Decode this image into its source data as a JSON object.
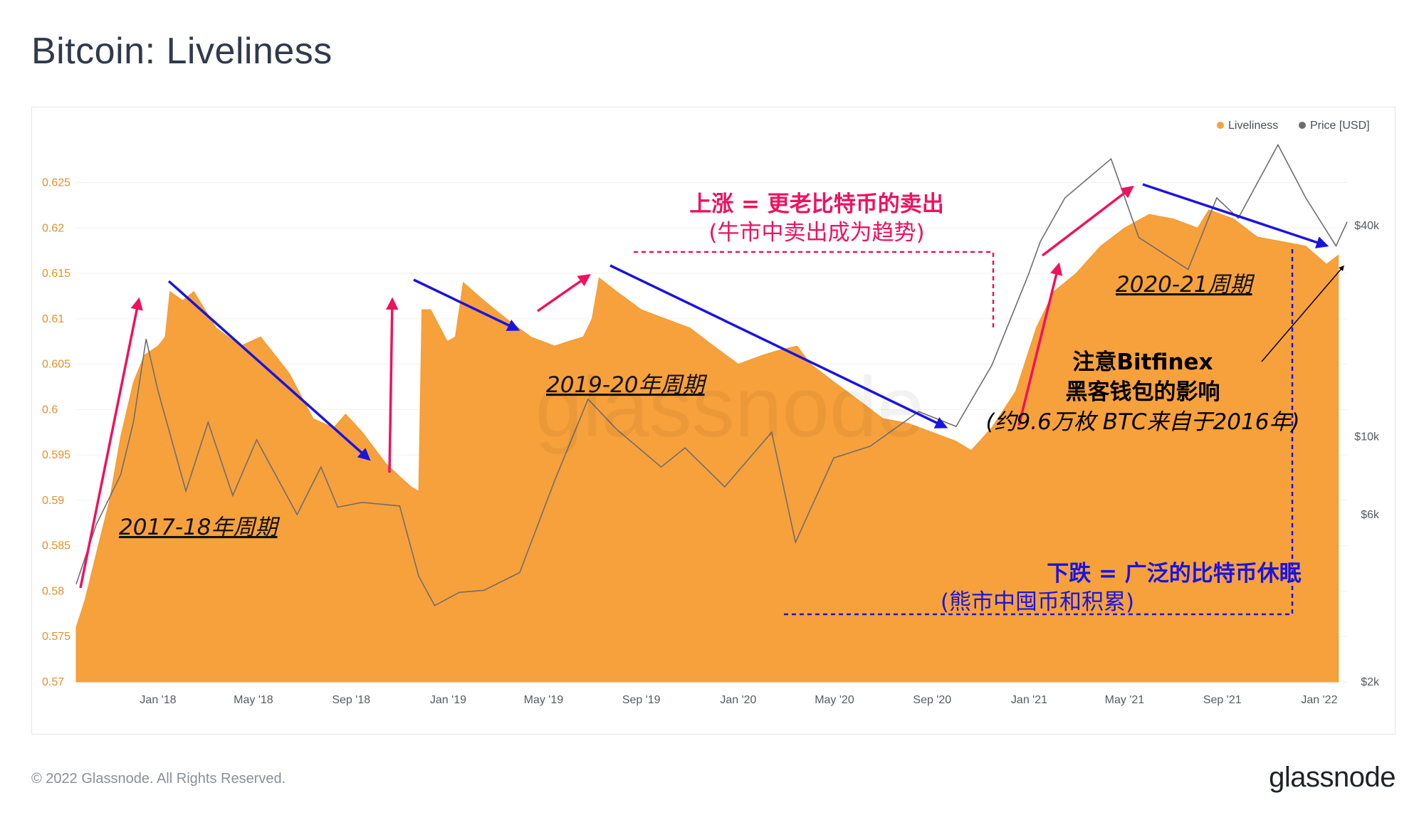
{
  "header": {
    "title": "Bitcoin: Liveliness"
  },
  "footer": {
    "copyright": "© 2022 Glassnode. All Rights Reserved.",
    "logo_text": "glassnode"
  },
  "watermark": "glassnode",
  "colors": {
    "liveliness": "#f7a13c",
    "price": "#6e6e6e",
    "up_arrow": "#f0115f",
    "down_arrow": "#1a14e0",
    "dashed_up": "#f0115f",
    "dashed_down": "#1a14e0"
  },
  "chart_data": {
    "type": "area",
    "title": "Bitcoin: Liveliness",
    "legend": {
      "position": "top-right",
      "items": [
        "Liveliness",
        "Price [USD]"
      ]
    },
    "x_ticks": [
      "Jan '18",
      "May '18",
      "Sep '18",
      "Jan '19",
      "May '19",
      "Sep '19",
      "Jan '20",
      "May '20",
      "Sep '20",
      "Jan '21",
      "May '21",
      "Sep '21",
      "Jan '22"
    ],
    "y_left": {
      "label": "Liveliness",
      "ylim": [
        0.57,
        0.627
      ],
      "ticks": [
        "0.57",
        "0.575",
        "0.58",
        "0.585",
        "0.59",
        "0.595",
        "0.6",
        "0.605",
        "0.61",
        "0.615",
        "0.62",
        "0.625"
      ]
    },
    "y_right": {
      "label": "Price [USD]",
      "scale": "log",
      "ticks": [
        "$2k",
        "$6k",
        "$10k",
        "$40k"
      ],
      "tick_values": [
        2000,
        6000,
        10000,
        40000
      ]
    },
    "series": [
      {
        "name": "Liveliness",
        "type": "area",
        "points": [
          [
            "2017-09-20",
            0.576
          ],
          [
            "2017-10-01",
            0.579
          ],
          [
            "2017-10-15",
            0.584
          ],
          [
            "2017-11-01",
            0.59
          ],
          [
            "2017-11-15",
            0.597
          ],
          [
            "2017-12-01",
            0.603
          ],
          [
            "2017-12-15",
            0.606
          ],
          [
            "2018-01-01",
            0.607
          ],
          [
            "2018-01-10",
            0.608
          ],
          [
            "2018-01-16",
            0.613
          ],
          [
            "2018-02-01",
            0.612
          ],
          [
            "2018-02-15",
            0.613
          ],
          [
            "2018-03-15",
            0.609
          ],
          [
            "2018-04-15",
            0.607
          ],
          [
            "2018-05-10",
            0.608
          ],
          [
            "2018-06-15",
            0.604
          ],
          [
            "2018-07-15",
            0.599
          ],
          [
            "2018-08-10",
            0.598
          ],
          [
            "2018-08-25",
            0.5995
          ],
          [
            "2018-09-15",
            0.5975
          ],
          [
            "2018-10-15",
            0.594
          ],
          [
            "2018-11-15",
            0.5915
          ],
          [
            "2018-11-25",
            0.591
          ],
          [
            "2018-11-29",
            0.611
          ],
          [
            "2018-12-10",
            0.611
          ],
          [
            "2018-12-31",
            0.6075
          ],
          [
            "2019-01-10",
            0.608
          ],
          [
            "2019-01-20",
            0.614
          ],
          [
            "2019-02-15",
            0.612
          ],
          [
            "2019-03-15",
            0.61
          ],
          [
            "2019-04-15",
            0.608
          ],
          [
            "2019-05-15",
            0.607
          ],
          [
            "2019-06-01",
            0.6075
          ],
          [
            "2019-06-20",
            0.608
          ],
          [
            "2019-07-01",
            0.61
          ],
          [
            "2019-07-10",
            0.6145
          ],
          [
            "2019-08-01",
            0.613
          ],
          [
            "2019-09-01",
            0.611
          ],
          [
            "2019-10-01",
            0.61
          ],
          [
            "2019-11-01",
            0.609
          ],
          [
            "2019-12-01",
            0.607
          ],
          [
            "2020-01-01",
            0.605
          ],
          [
            "2020-02-01",
            0.606
          ],
          [
            "2020-02-20",
            0.6065
          ],
          [
            "2020-03-15",
            0.607
          ],
          [
            "2020-04-01",
            0.605
          ],
          [
            "2020-05-01",
            0.603
          ],
          [
            "2020-06-01",
            0.601
          ],
          [
            "2020-07-01",
            0.599
          ],
          [
            "2020-08-01",
            0.5985
          ],
          [
            "2020-09-01",
            0.5975
          ],
          [
            "2020-10-01",
            0.5965
          ],
          [
            "2020-10-20",
            0.5955
          ],
          [
            "2020-11-15",
            0.598
          ],
          [
            "2020-12-15",
            0.602
          ],
          [
            "2021-01-10",
            0.609
          ],
          [
            "2021-02-01",
            0.613
          ],
          [
            "2021-03-01",
            0.615
          ],
          [
            "2021-04-01",
            0.618
          ],
          [
            "2021-05-01",
            0.62
          ],
          [
            "2021-06-01",
            0.6215
          ],
          [
            "2021-07-01",
            0.621
          ],
          [
            "2021-08-01",
            0.62
          ],
          [
            "2021-08-15",
            0.622
          ],
          [
            "2021-09-15",
            0.621
          ],
          [
            "2021-10-15",
            0.619
          ],
          [
            "2021-11-15",
            0.6185
          ],
          [
            "2021-12-15",
            0.618
          ],
          [
            "2022-01-10",
            0.616
          ],
          [
            "2022-01-25",
            0.617
          ]
        ]
      },
      {
        "name": "Price [USD]",
        "type": "line",
        "points": [
          [
            "2017-09-20",
            3800
          ],
          [
            "2017-10-15",
            5600
          ],
          [
            "2017-11-15",
            7800
          ],
          [
            "2017-12-01",
            11000
          ],
          [
            "2017-12-17",
            19000
          ],
          [
            "2018-01-01",
            13500
          ],
          [
            "2018-02-05",
            7000
          ],
          [
            "2018-03-05",
            11000
          ],
          [
            "2018-04-05",
            6800
          ],
          [
            "2018-05-05",
            9800
          ],
          [
            "2018-06-25",
            6000
          ],
          [
            "2018-07-25",
            8200
          ],
          [
            "2018-08-15",
            6300
          ],
          [
            "2018-09-15",
            6500
          ],
          [
            "2018-11-01",
            6350
          ],
          [
            "2018-11-25",
            4000
          ],
          [
            "2018-12-15",
            3300
          ],
          [
            "2019-01-15",
            3600
          ],
          [
            "2019-02-15",
            3650
          ],
          [
            "2019-04-01",
            4100
          ],
          [
            "2019-05-15",
            7500
          ],
          [
            "2019-06-26",
            12800
          ],
          [
            "2019-08-01",
            10500
          ],
          [
            "2019-09-26",
            8200
          ],
          [
            "2019-10-26",
            9300
          ],
          [
            "2019-12-15",
            7200
          ],
          [
            "2020-02-12",
            10300
          ],
          [
            "2020-03-13",
            5000
          ],
          [
            "2020-04-30",
            8700
          ],
          [
            "2020-06-15",
            9400
          ],
          [
            "2020-08-15",
            11800
          ],
          [
            "2020-10-01",
            10700
          ],
          [
            "2020-11-15",
            16000
          ],
          [
            "2020-12-31",
            29000
          ],
          [
            "2021-01-15",
            36000
          ],
          [
            "2021-02-15",
            48000
          ],
          [
            "2021-04-14",
            62000
          ],
          [
            "2021-05-19",
            37000
          ],
          [
            "2021-07-20",
            30000
          ],
          [
            "2021-08-25",
            48000
          ],
          [
            "2021-09-21",
            42000
          ],
          [
            "2021-11-10",
            68000
          ],
          [
            "2021-12-15",
            48000
          ],
          [
            "2022-01-22",
            35000
          ],
          [
            "2022-02-05",
            41000
          ]
        ]
      }
    ],
    "annotations": {
      "cycles": [
        "2017-18年周期",
        "2019-20年周期",
        "2020-21周期"
      ],
      "up_title": "上涨 = 更老比特币的卖出",
      "up_sub": "(牛市中卖出成为趋势)",
      "down_title": "下跌 = 广泛的比特币休眠",
      "down_sub": "(熊市中囤币和积累)",
      "note_line1": "注意Bitfinex",
      "note_line2": "黑客钱包的影响",
      "note_line3": "(约9.6万枚 BTC来自于2016年)"
    }
  }
}
